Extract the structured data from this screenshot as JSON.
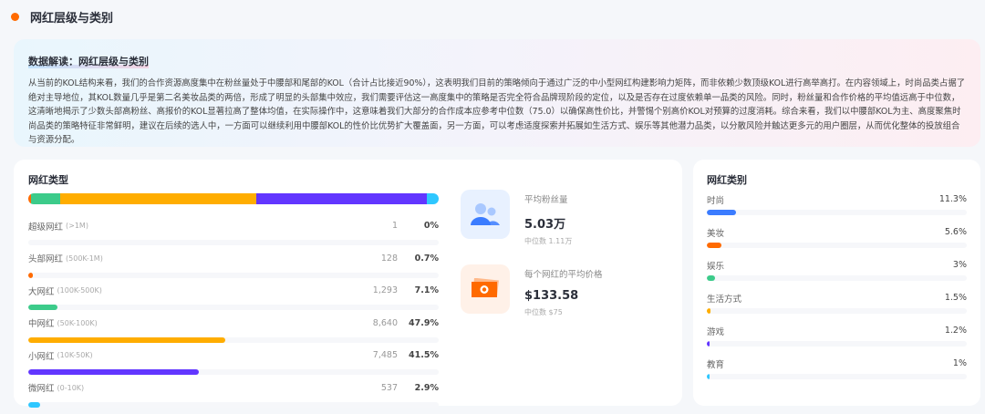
{
  "header": {
    "title": "网红层级与类别"
  },
  "insight": {
    "title": "数据解读：网红层级与类别",
    "body": "从当前的KOL结构来看，我们的合作资源高度集中在粉丝量处于中腰部和尾部的KOL（合计占比接近90%），这表明我们目前的策略倾向于通过广泛的中小型网红构建影响力矩阵，而非依赖少数顶级KOL进行高举高打。在内容领域上，时尚品类占据了绝对主导地位，其KOL数量几乎是第二名美妆品类的两倍，形成了明显的头部集中效应，我们需要评估这一高度集中的策略是否完全符合品牌现阶段的定位，以及是否存在过度依赖单一品类的风险。同时，粉丝量和合作价格的平均值远高于中位数，这清晰地揭示了少数头部高粉丝、高报价的KOL显著拉高了整体均值，在实际操作中，这意味着我们大部分的合作成本应参考中位数（75.0）以确保高性价比，并警惕个别高价KOL对预算的过度消耗。综合来看，我们以中腰部KOL为主、高度聚焦时尚品类的策略特征非常鲜明，建议在后续的选人中，一方面可以继续利用中腰部KOL的性价比优势扩大覆盖面，另一方面，可以考虑适度探索并拓展如生活方式、娱乐等其他潜力品类，以分散风险并触达更多元的用户圈层，从而优化整体的投放组合与资源分配。"
  },
  "tiers": {
    "title": "网红类型",
    "items": [
      {
        "name": "超级网红",
        "range": "(>1M)",
        "count": "1",
        "percent": "0%",
        "value": 0,
        "color": "#ff6a00"
      },
      {
        "name": "头部网红",
        "range": "(500K-1M)",
        "count": "128",
        "percent": "0.7%",
        "value": 0.7,
        "color": "#ff6a00"
      },
      {
        "name": "大网红",
        "range": "(100K-500K)",
        "count": "1,293",
        "percent": "7.1%",
        "value": 7.1,
        "color": "#3ccb8a"
      },
      {
        "name": "中网红",
        "range": "(50K-100K)",
        "count": "8,640",
        "percent": "47.9%",
        "value": 47.9,
        "color": "#ffad00"
      },
      {
        "name": "小网红",
        "range": "(10K-50K)",
        "count": "7,485",
        "percent": "41.5%",
        "value": 41.5,
        "color": "#6236ff"
      },
      {
        "name": "微网红",
        "range": "(0-10K)",
        "count": "537",
        "percent": "2.9%",
        "value": 2.9,
        "color": "#2ec7ff"
      }
    ]
  },
  "stats": [
    {
      "icon": "users-icon",
      "label": "平均粉丝量",
      "value": "5.03万",
      "median": "中位数 1.11万",
      "bg": "#e8f1ff"
    },
    {
      "icon": "money-icon",
      "label": "每个网红的平均价格",
      "value": "$133.58",
      "median": "中位数 $75",
      "bg": "#fff1e8"
    }
  ],
  "categories": {
    "title": "网红类别",
    "items": [
      {
        "name": "时尚",
        "percent": "11.3%",
        "value": 11.3,
        "color": "#3b7cff"
      },
      {
        "name": "美妆",
        "percent": "5.6%",
        "value": 5.6,
        "color": "#ff6a00"
      },
      {
        "name": "娱乐",
        "percent": "3%",
        "value": 3,
        "color": "#3ccb8a"
      },
      {
        "name": "生活方式",
        "percent": "1.5%",
        "value": 1.5,
        "color": "#ffad00"
      },
      {
        "name": "游戏",
        "percent": "1.2%",
        "value": 1.2,
        "color": "#6236ff"
      },
      {
        "name": "教育",
        "percent": "1%",
        "value": 1,
        "color": "#2ec7ff"
      }
    ]
  }
}
